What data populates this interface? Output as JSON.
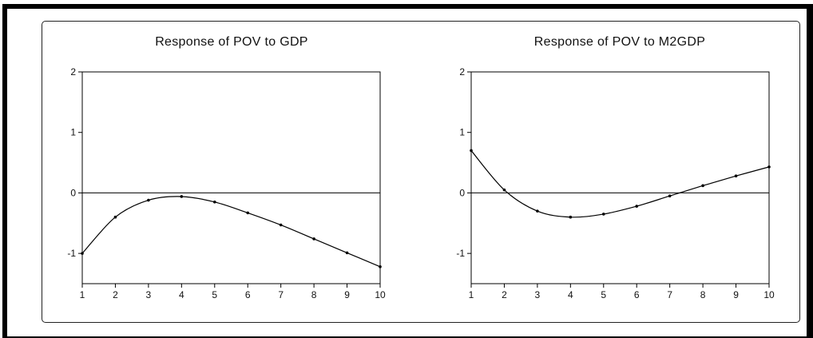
{
  "chart_data": [
    {
      "type": "line",
      "title": "Response of POV to GDP",
      "xlabel": "",
      "ylabel": "",
      "x": [
        1,
        2,
        3,
        4,
        5,
        6,
        7,
        8,
        9,
        10
      ],
      "series": [
        {
          "values": [
            -1.0,
            -0.4,
            -0.12,
            -0.06,
            -0.15,
            -0.33,
            -0.53,
            -0.76,
            -0.99,
            -1.22
          ]
        }
      ],
      "xlim": [
        1,
        10
      ],
      "ylim": [
        -1.5,
        2
      ],
      "yticks": [
        -1,
        0,
        1,
        2
      ],
      "xticks": [
        1,
        2,
        3,
        4,
        5,
        6,
        7,
        8,
        9,
        10
      ],
      "zero_line": true,
      "grid": false
    },
    {
      "type": "line",
      "title": "Response of POV to M2GDP",
      "xlabel": "",
      "ylabel": "",
      "x": [
        1,
        2,
        3,
        4,
        5,
        6,
        7,
        8,
        9,
        10
      ],
      "series": [
        {
          "values": [
            0.7,
            0.05,
            -0.3,
            -0.4,
            -0.35,
            -0.22,
            -0.05,
            0.12,
            0.28,
            0.43
          ]
        }
      ],
      "xlim": [
        1,
        10
      ],
      "ylim": [
        -1.5,
        2
      ],
      "yticks": [
        -1,
        0,
        1,
        2
      ],
      "xticks": [
        1,
        2,
        3,
        4,
        5,
        6,
        7,
        8,
        9,
        10
      ],
      "zero_line": true,
      "grid": false
    }
  ]
}
